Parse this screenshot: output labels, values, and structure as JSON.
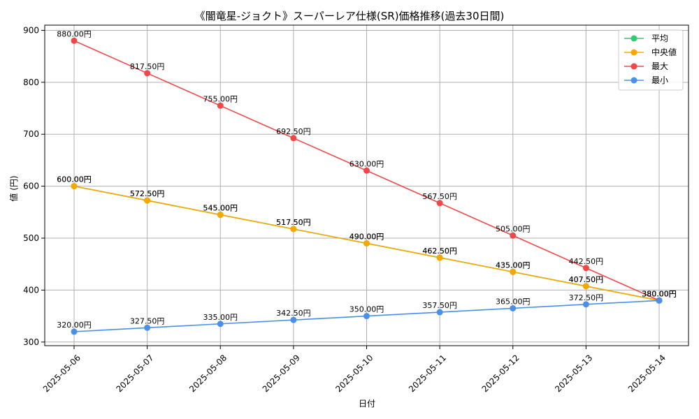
{
  "chart_data": {
    "type": "line",
    "title": "《闇竜星-ジョクト》スーパーレア仕様(SR)価格推移(過去30日間)",
    "xlabel": "日付",
    "ylabel": "値 (円)",
    "x": [
      "2025-05-06",
      "2025-05-07",
      "2025-05-08",
      "2025-05-09",
      "2025-05-10",
      "2025-05-11",
      "2025-05-12",
      "2025-05-13",
      "2025-05-14"
    ],
    "ylim": [
      293,
      910
    ],
    "yticks": [
      300,
      400,
      500,
      600,
      700,
      800,
      900
    ],
    "grid": true,
    "legend_position": "top-right",
    "value_suffix": "円",
    "series": [
      {
        "name": "平均",
        "color": "#2ecc71",
        "values": [
          600,
          572.5,
          545,
          517.5,
          490,
          462.5,
          435,
          407.5,
          380
        ]
      },
      {
        "name": "中央値",
        "color": "#f5a800",
        "values": [
          600,
          572.5,
          545,
          517.5,
          490,
          462.5,
          435,
          407.5,
          380
        ]
      },
      {
        "name": "最大",
        "color": "#f04848",
        "values": [
          880,
          817.5,
          755,
          692.5,
          630,
          567.5,
          505,
          442.5,
          380
        ]
      },
      {
        "name": "最小",
        "color": "#4a90e8",
        "values": [
          320,
          327.5,
          335,
          342.5,
          350,
          357.5,
          365,
          372.5,
          380
        ]
      }
    ]
  }
}
